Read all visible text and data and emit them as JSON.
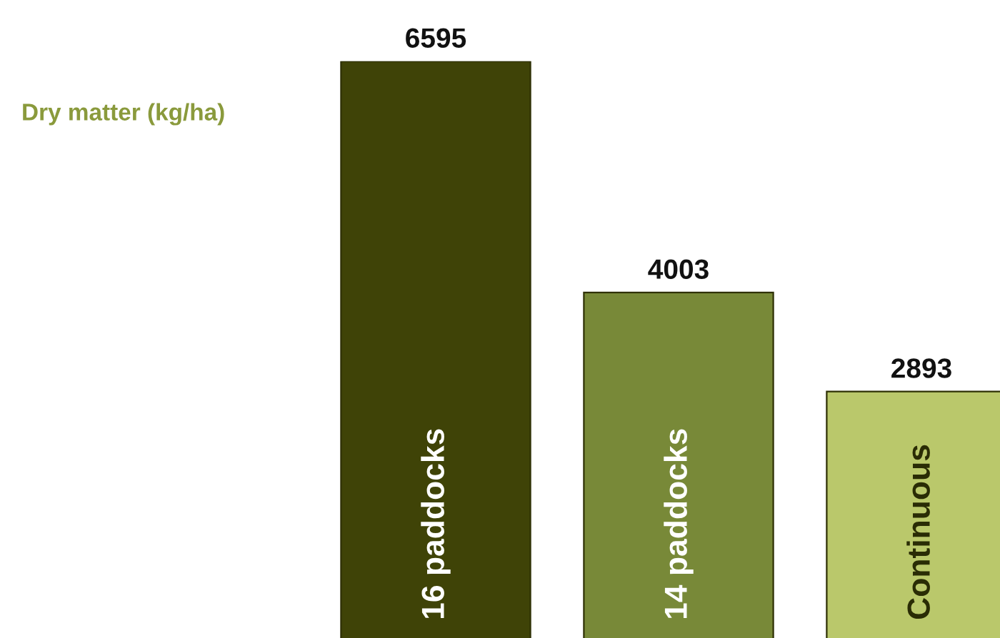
{
  "chart_data": {
    "type": "bar",
    "ylabel": "Dry matter (kg/ha)",
    "categories": [
      "16 paddocks",
      "14 paddocks",
      "Continuous"
    ],
    "values": [
      6595,
      4003,
      2893
    ],
    "colors": [
      "#3f4307",
      "#788938",
      "#bac86b"
    ],
    "data_labels": true
  }
}
